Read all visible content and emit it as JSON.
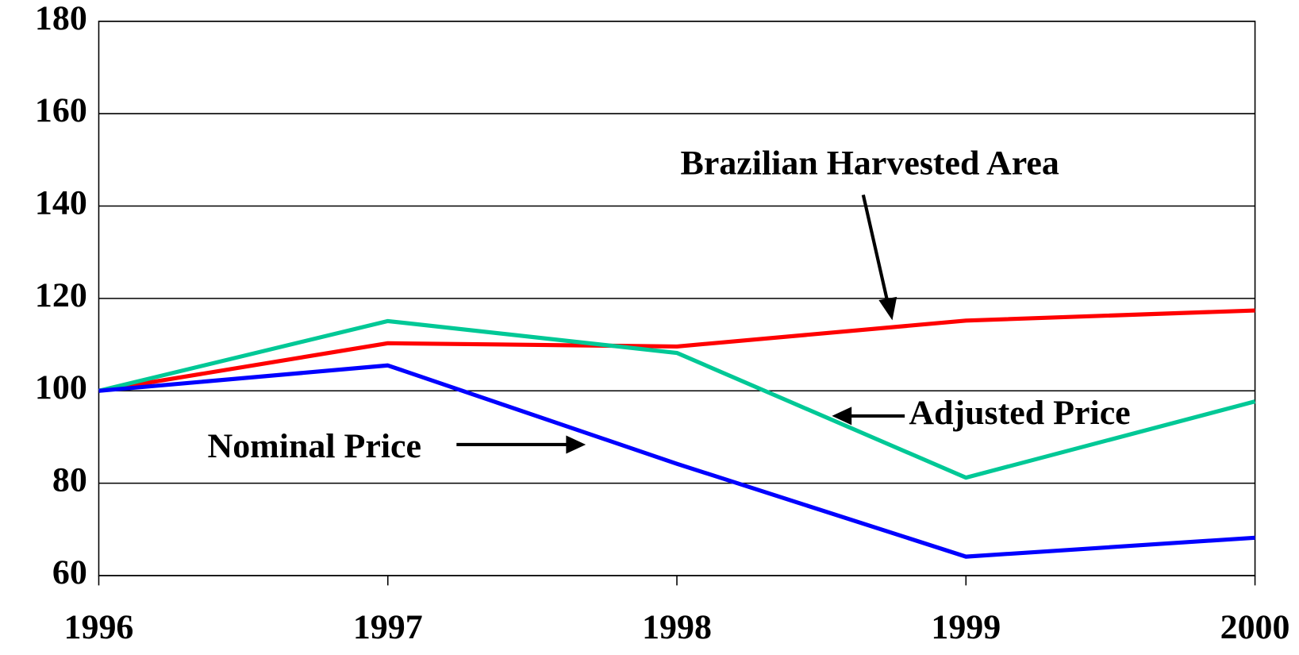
{
  "chart_data": {
    "type": "line",
    "x": [
      1996,
      1997,
      1998,
      1999,
      2000
    ],
    "series": [
      {
        "name": "Brazilian Harvested Area",
        "color": "#ff0000",
        "values": [
          100,
          110.3,
          109.6,
          115.2,
          117.4
        ]
      },
      {
        "name": "Adjusted Price",
        "color": "#00c896",
        "values": [
          100,
          115.1,
          108.2,
          81.2,
          97.7
        ]
      },
      {
        "name": "Nominal Price",
        "color": "#0000ff",
        "values": [
          100,
          105.5,
          84.2,
          64.1,
          68.2
        ]
      }
    ],
    "xlim": [
      1996,
      2000
    ],
    "xticks": [
      1996,
      1997,
      1998,
      1999,
      2000
    ],
    "ylim": [
      60,
      180
    ],
    "yticks": [
      60,
      80,
      100,
      120,
      140,
      160,
      180
    ],
    "grid": true
  }
}
